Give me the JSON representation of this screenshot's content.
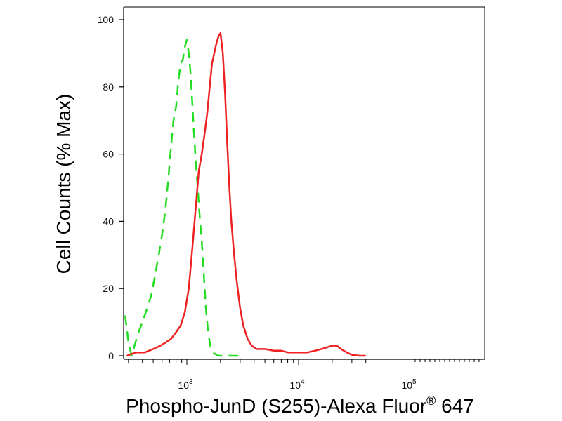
{
  "chart_data": {
    "type": "line",
    "title": "",
    "xlabel": {
      "main": "Phospho-JunD (S255)-Alexa Fluor",
      "superscript": "®",
      "suffix": " 647"
    },
    "ylabel": "Cell Counts (% Max)",
    "x_scale": "log",
    "xlim": [
      280,
      45000
    ],
    "ylim": [
      0,
      100
    ],
    "y_ticks": [
      0,
      20,
      40,
      60,
      80,
      100
    ],
    "x_ticks": [
      {
        "value": 1000,
        "base": "10",
        "exp": "3"
      },
      {
        "value": 10000,
        "base": "10",
        "exp": "4"
      },
      {
        "value": 100000,
        "base": "10",
        "exp": "5"
      }
    ],
    "grid": false,
    "legend": "none",
    "series": [
      {
        "color": "#22dd22",
        "style": "dashed",
        "x": [
          280,
          300,
          320,
          340,
          370,
          400,
          440,
          480,
          520,
          560,
          600,
          640,
          680,
          720,
          760,
          800,
          840,
          880,
          920,
          960,
          1000,
          1040,
          1080,
          1120,
          1160,
          1200,
          1250,
          1300,
          1360,
          1420,
          1480,
          1550,
          1620,
          1700,
          1800,
          1900,
          2000,
          2200,
          2500,
          3000
        ],
        "y": [
          12,
          4,
          0,
          3,
          7,
          10,
          14,
          18,
          24,
          30,
          36,
          43,
          52,
          62,
          70,
          74,
          82,
          87,
          88,
          92,
          94,
          90,
          84,
          75,
          66,
          58,
          50,
          42,
          34,
          24,
          14,
          7,
          3,
          1,
          0.5,
          0,
          0,
          0,
          0,
          0
        ]
      },
      {
        "color": "#ee2222",
        "style": "solid",
        "x": [
          290,
          350,
          420,
          500,
          580,
          650,
          720,
          800,
          880,
          960,
          1040,
          1120,
          1200,
          1280,
          1360,
          1440,
          1520,
          1600,
          1680,
          1760,
          1840,
          1920,
          2000,
          2100,
          2200,
          2300,
          2400,
          2500,
          2650,
          2800,
          3000,
          3200,
          3500,
          3800,
          4200,
          4600,
          5000,
          6000,
          7000,
          8000,
          9000,
          10000,
          12000,
          14000,
          16000,
          18000,
          20000,
          22000,
          24000,
          27000,
          30000,
          35000,
          40000
        ],
        "y": [
          0,
          1,
          1,
          2,
          3,
          4,
          5,
          7,
          9,
          13,
          20,
          32,
          44,
          55,
          60,
          66,
          72,
          80,
          87,
          90,
          93,
          95,
          96,
          90,
          78,
          63,
          50,
          40,
          30,
          22,
          14,
          9,
          5,
          3,
          2,
          2,
          2,
          1.5,
          1.5,
          1,
          1,
          1,
          1,
          1.5,
          2,
          2.5,
          3,
          3,
          2,
          1,
          0.3,
          0,
          0
        ]
      }
    ]
  }
}
